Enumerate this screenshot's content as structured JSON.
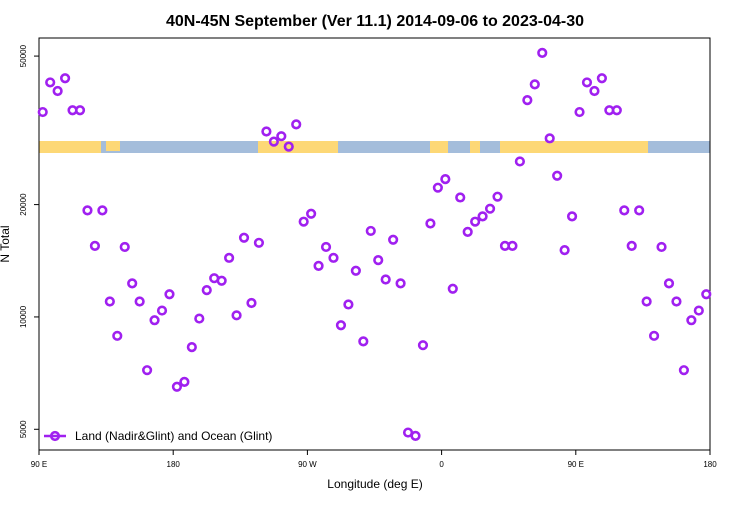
{
  "chart_data": {
    "type": "scatter",
    "title": "40N-45N September (Ver 11.1)   2014-09-06 to 2023-04-30",
    "xlabel": "Longitude (deg E)",
    "ylabel": "N Total",
    "xlim": [
      90,
      540
    ],
    "xticks": [
      {
        "value": 90,
        "label": "90 E"
      },
      {
        "value": 180,
        "label": "180"
      },
      {
        "value": 270,
        "label": "90 W"
      },
      {
        "value": 360,
        "label": "0"
      },
      {
        "value": 450,
        "label": "90 E"
      },
      {
        "value": 540,
        "label": "180"
      }
    ],
    "ylim": [
      4400,
      55900
    ],
    "yticks": [
      5000,
      10000,
      20000,
      50000
    ],
    "y_scale": "log",
    "legend": "bottom-left",
    "x": [
      92.5,
      97.5,
      102.5,
      107.5,
      112.5,
      117.5,
      122.5,
      127.5,
      132.5,
      137.5,
      142.5,
      147.5,
      152.5,
      157.5,
      162.5,
      167.5,
      172.5,
      177.5,
      182.5,
      187.5,
      192.5,
      197.5,
      202.5,
      207.5,
      212.5,
      217.5,
      222.5,
      227.5,
      232.5,
      237.5,
      242.5,
      247.5,
      252.5,
      257.5,
      262.5,
      267.5,
      272.5,
      277.5,
      282.5,
      287.5,
      292.5,
      297.5,
      302.5,
      307.5,
      312.5,
      317.5,
      322.5,
      327.5,
      332.5,
      337.5,
      342.5,
      347.5,
      352.5,
      357.5,
      362.5,
      367.5,
      372.5,
      377.5,
      382.5,
      387.5,
      392.5,
      397.5,
      402.5,
      407.5,
      412.5,
      417.5,
      422.5,
      427.5,
      432.5,
      437.5,
      442.5,
      447.5,
      452.5,
      457.5,
      462.5,
      467.5,
      472.5,
      477.5,
      482.5,
      487.5,
      492.5,
      497.5,
      502.5,
      507.5,
      512.5,
      517.5,
      522.5,
      527.5,
      532.5,
      537.5
    ],
    "series": [
      {
        "name": "Land (Nadir&Glint) and Ocean (Glint)",
        "color": "#a020f0",
        "values": [
          35400,
          42500,
          40300,
          43600,
          35800,
          35800,
          19300,
          15500,
          19300,
          11000,
          8900,
          15400,
          12300,
          11000,
          7200,
          9800,
          10400,
          11500,
          6500,
          6700,
          8300,
          9900,
          11800,
          12700,
          12500,
          14400,
          10100,
          16300,
          10900,
          15800,
          31400,
          29500,
          30500,
          28600,
          32800,
          18000,
          18900,
          13700,
          15400,
          14400,
          9500,
          10800,
          13300,
          8600,
          17000,
          14200,
          12600,
          16100,
          12300,
          4900,
          4800,
          8400,
          17800,
          22200,
          23400,
          11900,
          20900,
          16900,
          18000,
          18600,
          19500,
          21000,
          15500,
          15500,
          26100,
          38100,
          42000,
          51000,
          30100,
          23900,
          15100,
          18600,
          35400,
          42500,
          40300,
          43600,
          35800,
          35800,
          19300,
          15500,
          19300,
          11000,
          8900,
          15400,
          12300,
          11000,
          7200,
          9800,
          10400,
          11500
        ]
      }
    ]
  }
}
